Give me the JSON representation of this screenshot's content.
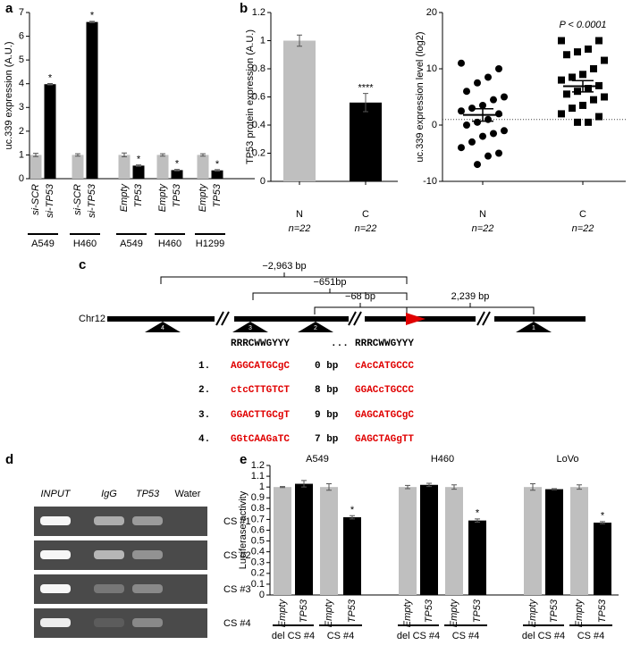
{
  "panel_labels": [
    "a",
    "b",
    "c",
    "d",
    "e"
  ],
  "chart_data": [
    {
      "type": "grouped_bar",
      "y_label": "uc.339 expression (A.U.)",
      "ylim": [
        0,
        7
      ],
      "yticks": [
        0,
        1,
        2,
        3,
        4,
        5,
        6,
        7
      ],
      "groups": [
        {
          "name": "A549",
          "bars": [
            "si-SCR",
            "si-TP53"
          ]
        },
        {
          "name": "H460",
          "bars": [
            "si-SCR",
            "si-TP53"
          ]
        },
        {
          "name": "A549",
          "bars": [
            "Empty",
            "TP53"
          ]
        },
        {
          "name": "H460",
          "bars": [
            "Empty",
            "TP53"
          ]
        },
        {
          "name": "H1299",
          "bars": [
            "Empty",
            "TP53"
          ]
        }
      ],
      "series": [
        {
          "color": "#bfbfbf",
          "values": [
            1,
            1,
            1,
            1,
            1
          ],
          "errors": [
            0.07,
            0.05,
            0.08,
            0.05,
            0.05
          ]
        },
        {
          "color": "#000000",
          "values": [
            3.98,
            6.6,
            0.55,
            0.36,
            0.35
          ],
          "errors": [
            0.03,
            0.03,
            0.03,
            0.03,
            0.03
          ],
          "annotations": [
            "*",
            "*",
            "*",
            "*",
            "*"
          ]
        }
      ]
    },
    {
      "type": "bar",
      "y_label": "TP53  protein expression (A.U.)",
      "ylim": [
        0,
        1.2
      ],
      "yticks": [
        0,
        0.2,
        0.4,
        0.6,
        0.8,
        1,
        1.2
      ],
      "categories": [
        "N",
        "C"
      ],
      "sublabels": [
        "n=22",
        "n=22"
      ],
      "values": [
        1,
        0.56
      ],
      "errors": [
        0.04,
        0.065
      ],
      "colors": [
        "#bfbfbf",
        "#000000"
      ],
      "annotations": [
        null,
        "****"
      ]
    },
    {
      "type": "scatter",
      "y_label": "uc.339 expression level (log2)",
      "ylim": [
        -10,
        20
      ],
      "yticks": [
        -10,
        0,
        10,
        20
      ],
      "annotation": "P < 0.0001",
      "reference_line": 1,
      "categories": [
        "N",
        "C"
      ],
      "sublabels": [
        "n=22",
        "n=22"
      ],
      "series": [
        {
          "marker": "circle",
          "color": "#000000",
          "values": [
            11,
            10,
            8.5,
            7.5,
            6,
            5,
            4.5,
            3.5,
            3,
            2.5,
            2,
            1,
            0.5,
            0,
            -1,
            -1.5,
            -2,
            -3,
            -4,
            -5,
            -5.5,
            -7
          ],
          "mean": 1.8,
          "sem": 1.1
        },
        {
          "marker": "square",
          "color": "#000000",
          "values": [
            15,
            15,
            13.5,
            13,
            12.5,
            11.5,
            10,
            9,
            8.5,
            8,
            7,
            6.5,
            6,
            5.5,
            5,
            4.5,
            3.5,
            3,
            2,
            1.5,
            0.5,
            0.5
          ],
          "mean": 6.9,
          "sem": 1.0
        }
      ]
    },
    {
      "type": "panel_bar",
      "y_label": "Luciferase activity",
      "ylim": [
        0,
        1.2
      ],
      "yticks": [
        0,
        0.1,
        0.2,
        0.3,
        0.4,
        0.5,
        0.6,
        0.7,
        0.8,
        0.9,
        1,
        1.1,
        1.2
      ],
      "categories": [
        "Empty",
        "TP53",
        "Empty",
        "TP53"
      ],
      "pairs": [
        "del CS #4",
        "CS #4"
      ],
      "colors": [
        "#bfbfbf",
        "#000000",
        "#bfbfbf",
        "#000000"
      ],
      "panels": [
        {
          "name": "A549",
          "values": [
            1,
            1.03,
            1,
            0.72
          ],
          "errors": [
            0.005,
            0.03,
            0.03,
            0.015
          ],
          "annotations": [
            null,
            null,
            null,
            "*"
          ]
        },
        {
          "name": "H460",
          "values": [
            1,
            1.02,
            1,
            0.69
          ],
          "errors": [
            0.015,
            0.015,
            0.02,
            0.015
          ],
          "annotations": [
            null,
            null,
            null,
            "*"
          ]
        },
        {
          "name": "LoVo",
          "values": [
            1,
            0.98,
            1,
            0.67
          ],
          "errors": [
            0.03,
            0.005,
            0.02,
            0.01
          ],
          "annotations": [
            null,
            null,
            null,
            "*"
          ]
        }
      ]
    }
  ],
  "diagram": {
    "chromosome": "Chr12",
    "distances": [
      "−2,963 bp",
      "−651bp",
      "−68 bp",
      "2,239 bp"
    ],
    "sites": [
      "4",
      "3",
      "2",
      "1"
    ],
    "consensus": [
      "RRRCWWGYYY",
      "...",
      "RRRCWWGYYY"
    ],
    "rows": [
      [
        "1.",
        "AGGCATGCgC",
        "0 bp",
        "cAcCATGCCC"
      ],
      [
        "2.",
        "ctcCTTGTCT",
        "8 bp",
        "GGACcTGCCC"
      ],
      [
        "3.",
        "GGACTTGCgT",
        "9 bp",
        "GAGCATGCgC"
      ],
      [
        "4.",
        "GGtCAAGaTC",
        "7 bp",
        "GAGCTAGgTT"
      ]
    ]
  },
  "gel": {
    "lanes": [
      "INPUT",
      "IgG",
      "TP53",
      "Water"
    ],
    "rows": [
      "CS #1",
      "CS #2",
      "CS #3",
      "CS #4"
    ]
  }
}
